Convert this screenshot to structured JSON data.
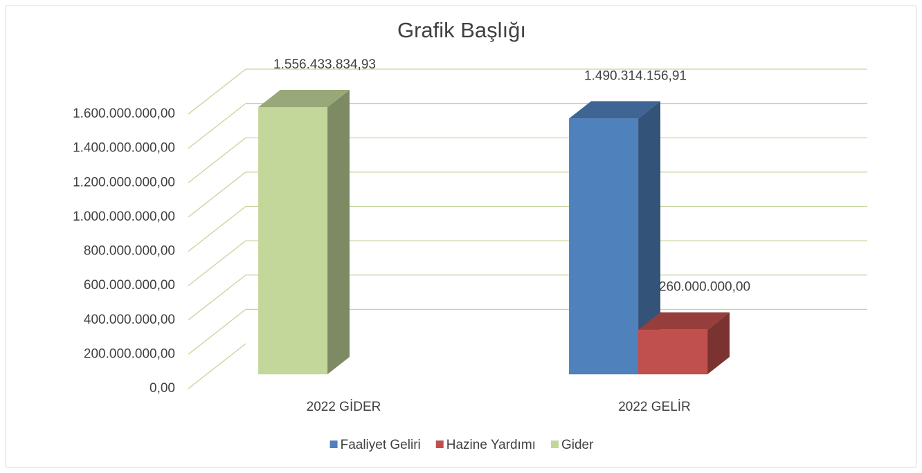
{
  "chart_data": {
    "type": "bar3d",
    "title": "Grafik Başlığı",
    "categories": [
      "2022 GİDER",
      "2022 GELİR"
    ],
    "series": [
      {
        "name": "Faaliyet Geliri",
        "color": "#4f81bd",
        "values": [
          null,
          1490314156.91
        ],
        "value_labels": [
          null,
          "1.490.314.156,91"
        ]
      },
      {
        "name": "Hazine Yardımı",
        "color": "#c0504d",
        "values": [
          null,
          260000000
        ],
        "value_labels": [
          null,
          "260.000.000,00"
        ]
      },
      {
        "name": "Gider",
        "color": "#c4d79b",
        "values": [
          1556433834.93,
          null
        ],
        "value_labels": [
          "1.556.433.834,93",
          null
        ]
      }
    ],
    "ylim": [
      0,
      1600000000
    ],
    "yticks": [
      {
        "value": 0,
        "label": "0,00"
      },
      {
        "value": 200000000,
        "label": "200.000.000,00"
      },
      {
        "value": 400000000,
        "label": "400.000.000,00"
      },
      {
        "value": 600000000,
        "label": "600.000.000,00"
      },
      {
        "value": 800000000,
        "label": "800.000.000,00"
      },
      {
        "value": 1000000000,
        "label": "1.000.000.000,00"
      },
      {
        "value": 1200000000,
        "label": "1.200.000.000,00"
      },
      {
        "value": 1400000000,
        "label": "1.400.000.000,00"
      },
      {
        "value": 1600000000,
        "label": "1.600.000.000,00"
      }
    ],
    "grid": true,
    "grid_color": "#c3d69b",
    "legend": "bottom"
  }
}
